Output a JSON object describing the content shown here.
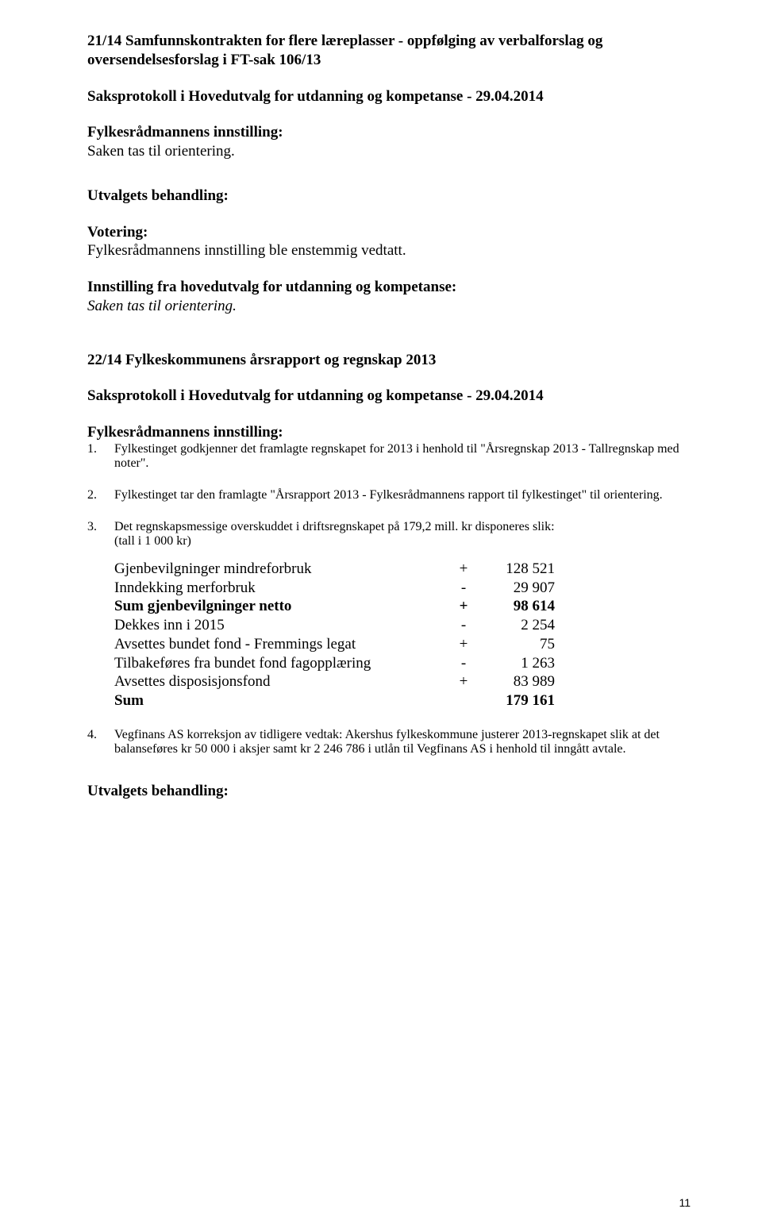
{
  "s1": {
    "heading1": "21/14 Samfunnskontrakten for flere læreplasser - oppfølging av verbalforslag og oversendelsesforslag i FT-sak 106/13",
    "heading2": "Saksprotokoll i Hovedutvalg for utdanning og kompetanse - 29.04.2014",
    "sub1_title": "Fylkesrådmannens innstilling:",
    "sub1_text": "Saken tas til orientering.",
    "sub2_title": "Utvalgets behandling:",
    "sub3_title": "Votering:",
    "sub3_text": "Fylkesrådmannens innstilling ble enstemmig vedtatt.",
    "sub4_title": "Innstilling fra hovedutvalg for utdanning og kompetanse:",
    "sub4_text": "Saken tas til orientering."
  },
  "s2": {
    "heading1": "22/14 Fylkeskommunens årsrapport og regnskap 2013",
    "heading2": "Saksprotokoll i Hovedutvalg for utdanning og kompetanse - 29.04.2014",
    "sub1_title": "Fylkesrådmannens innstilling:",
    "item1": "Fylkestinget godkjenner det framlagte regnskapet for 2013 i henhold til \"Årsregnskap 2013 - Tallregnskap med noter\".",
    "item2": "Fylkestinget tar den framlagte \"Årsrapport 2013 - Fylkesrådmannens rapport til fylkestinget\" til orientering.",
    "item3a": "Det regnskapsmessige overskuddet i driftsregnskapet på 179,2 mill. kr disponeres slik:",
    "item3b": "(tall i 1 000 kr)",
    "table": [
      {
        "label": "Gjenbevilgninger mindreforbruk",
        "op": "+",
        "val": "128 521",
        "bold": false
      },
      {
        "label": "Inndekking merforbruk",
        "op": "-",
        "val": "29 907",
        "bold": false
      },
      {
        "label": "Sum gjenbevilgninger netto",
        "op": "+",
        "val": "98 614",
        "bold": true
      },
      {
        "label": "Dekkes inn i 2015",
        "op": "-",
        "val": "2 254",
        "bold": false
      },
      {
        "label": "Avsettes bundet fond - Fremmings legat",
        "op": "+",
        "val": "75",
        "bold": false
      },
      {
        "label": "Tilbakeføres fra bundet fond fagopplæring",
        "op": "-",
        "val": "1 263",
        "bold": false
      },
      {
        "label": "Avsettes disposisjonsfond",
        "op": "+",
        "val": "83 989",
        "bold": false
      },
      {
        "label": "Sum",
        "op": "",
        "val": "179 161",
        "bold": true
      }
    ],
    "item4": "Vegfinans AS korreksjon av tidligere vedtak: Akershus fylkeskommune justerer 2013-regnskapet slik at det balanseføres kr 50 000 i aksjer samt kr 2 246 786 i utlån til Vegfinans AS i henhold til inngått avtale.",
    "sub2_title": "Utvalgets behandling:"
  },
  "nums": {
    "n1": "1.",
    "n2": "2.",
    "n3": "3.",
    "n4": "4."
  },
  "pageNum": "11"
}
